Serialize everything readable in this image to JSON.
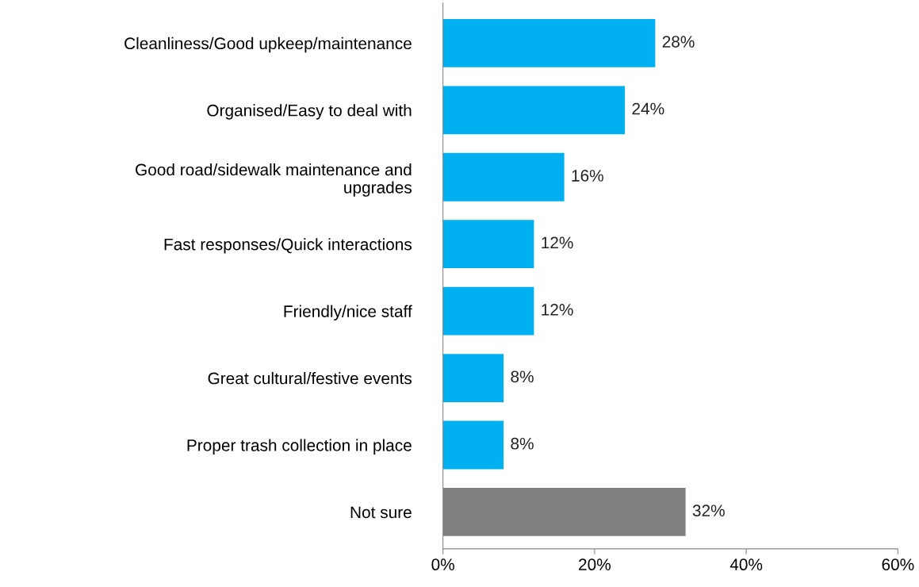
{
  "chart_data": {
    "type": "bar",
    "orientation": "horizontal",
    "categories": [
      "Cleanliness/Good upkeep/maintenance",
      "Organised/Easy to deal with",
      "Good road/sidewalk maintenance and\nupgrades",
      "Fast responses/Quick interactions",
      "Friendly/nice staff",
      "Great cultural/festive events",
      "Proper trash collection in place",
      "Not sure"
    ],
    "values": [
      28,
      24,
      16,
      12,
      12,
      8,
      8,
      32
    ],
    "colors": [
      "#00b0f0",
      "#00b0f0",
      "#00b0f0",
      "#00b0f0",
      "#00b0f0",
      "#00b0f0",
      "#00b0f0",
      "#808080"
    ],
    "value_labels": [
      "28%",
      "24%",
      "16%",
      "12%",
      "12%",
      "8%",
      "8%",
      "32%"
    ],
    "xlim": [
      0,
      60
    ],
    "xticks": [
      {
        "value": 0,
        "label": "0%"
      },
      {
        "value": 20,
        "label": "20%"
      },
      {
        "value": 40,
        "label": "40%"
      },
      {
        "value": 60,
        "label": "60%"
      }
    ],
    "grid": false
  }
}
